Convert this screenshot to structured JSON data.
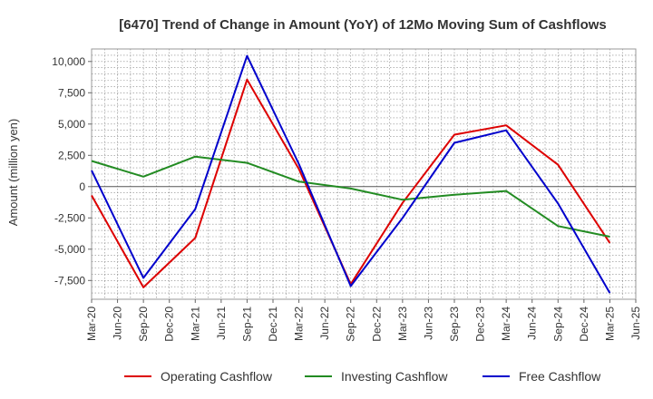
{
  "chart_data": {
    "type": "line",
    "title": "[6470]  Trend of Change in Amount (YoY) of 12Mo Moving Sum of Cashflows",
    "xlabel": "",
    "ylabel": "Amount (million yen)",
    "ylim": [
      -9000,
      11000
    ],
    "yticks": [
      10000,
      7500,
      5000,
      2500,
      0,
      -2500,
      -5000,
      -7500
    ],
    "ytick_labels": [
      "10,000",
      "7,500",
      "5,000",
      "2,500",
      "0",
      "-2,500",
      "-5,000",
      "-7,500"
    ],
    "categories": [
      "Mar-20",
      "Jun-20",
      "Sep-20",
      "Dec-20",
      "Mar-21",
      "Jun-21",
      "Sep-21",
      "Dec-21",
      "Mar-22",
      "Jun-22",
      "Sep-22",
      "Dec-22",
      "Mar-23",
      "Jun-23",
      "Sep-23",
      "Dec-23",
      "Mar-24",
      "Jun-24",
      "Sep-24",
      "Dec-24",
      "Mar-25",
      "Jun-25"
    ],
    "grid": true,
    "legend_position": "bottom",
    "series": [
      {
        "name": "Operating Cashflow",
        "color": "#dd0000",
        "points": [
          [
            0,
            -700
          ],
          [
            2,
            -8050
          ],
          [
            4,
            -4100
          ],
          [
            6,
            8550
          ],
          [
            8,
            1400
          ],
          [
            10,
            -7800
          ],
          [
            12,
            -1300
          ],
          [
            14,
            4150
          ],
          [
            16,
            4900
          ],
          [
            18,
            1750
          ],
          [
            20,
            -4500
          ]
        ]
      },
      {
        "name": "Investing Cashflow",
        "color": "#228b22",
        "points": [
          [
            0,
            2050
          ],
          [
            2,
            800
          ],
          [
            4,
            2400
          ],
          [
            6,
            1900
          ],
          [
            8,
            400
          ],
          [
            10,
            -150
          ],
          [
            12,
            -1050
          ],
          [
            14,
            -650
          ],
          [
            16,
            -350
          ],
          [
            18,
            -3150
          ],
          [
            20,
            -4000
          ]
        ]
      },
      {
        "name": "Free Cashflow",
        "color": "#0000cc",
        "points": [
          [
            0,
            1300
          ],
          [
            2,
            -7300
          ],
          [
            4,
            -1800
          ],
          [
            6,
            10450
          ],
          [
            8,
            1800
          ],
          [
            10,
            -7950
          ],
          [
            12,
            -2500
          ],
          [
            14,
            3500
          ],
          [
            16,
            4500
          ],
          [
            18,
            -1350
          ],
          [
            20,
            -8500
          ]
        ]
      }
    ]
  }
}
